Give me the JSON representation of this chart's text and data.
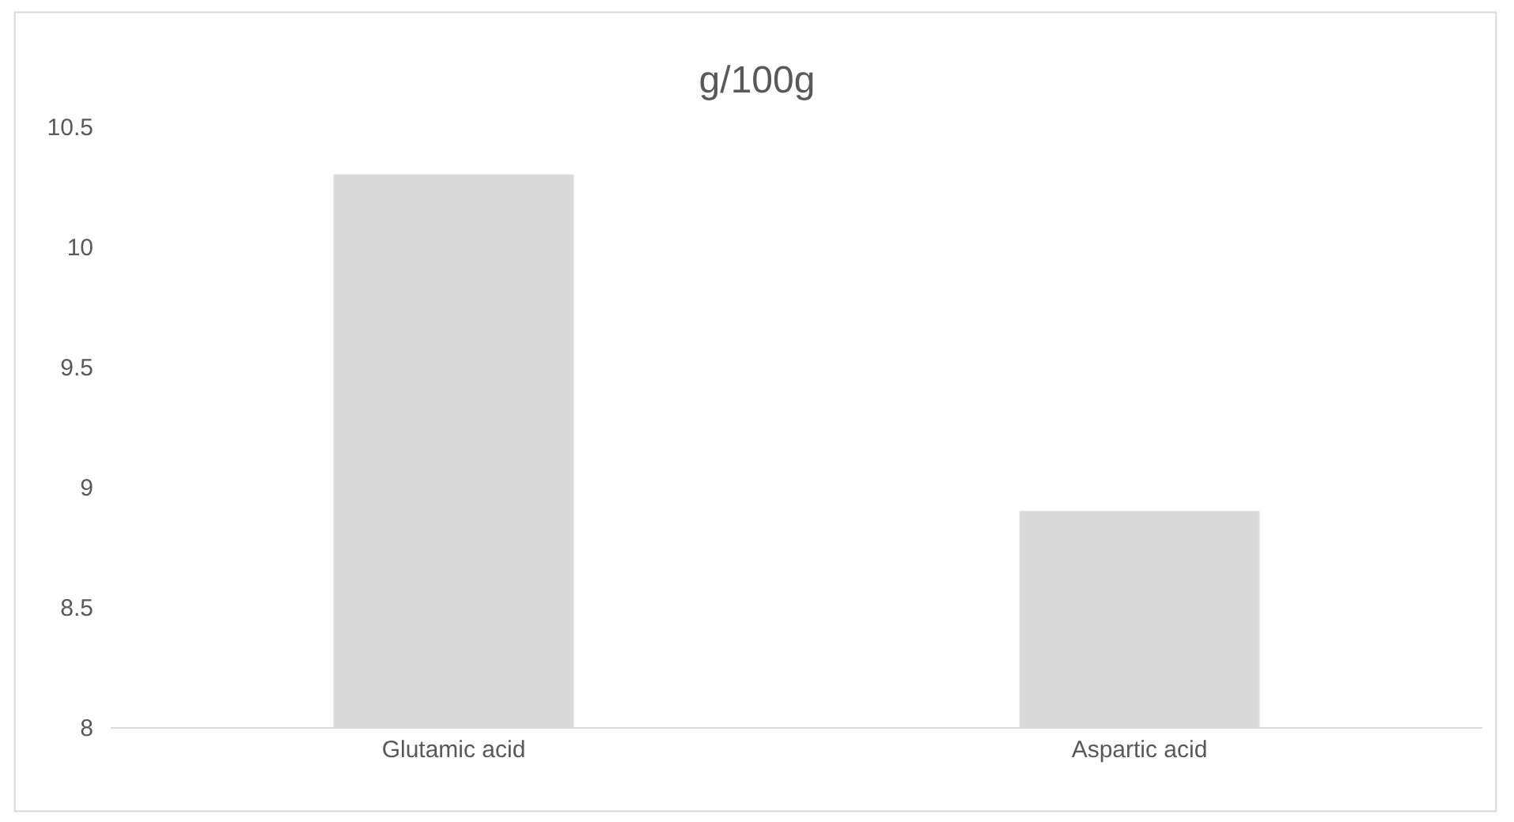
{
  "chart_data": {
    "type": "bar",
    "title": "g/100g",
    "categories": [
      "Glutamic acid",
      "Aspartic acid"
    ],
    "values": [
      10.3,
      8.9
    ],
    "color": "#d9d9d9",
    "ylim": [
      8,
      10.5
    ],
    "yticks": [
      8,
      8.5,
      9,
      9.5,
      10,
      10.5
    ],
    "grid": false
  }
}
